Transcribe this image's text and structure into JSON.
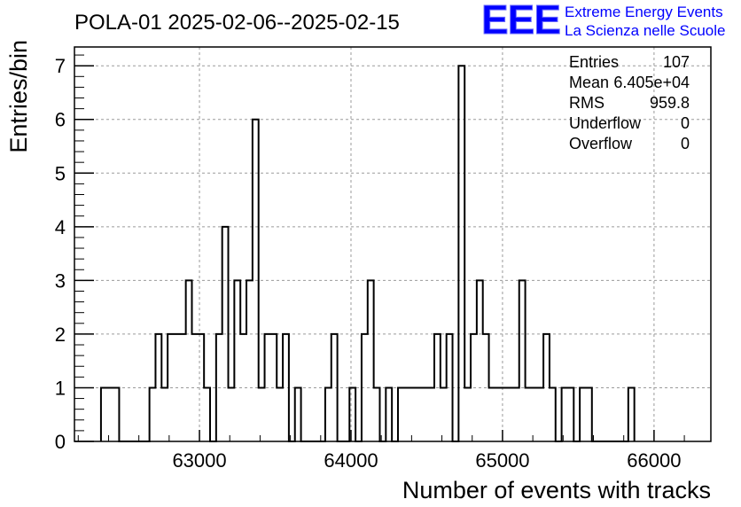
{
  "logo": {
    "mark": "EEE",
    "line1": "Extreme Energy Events",
    "line2": "La Scienza nelle Scuole",
    "color": "#0000ff"
  },
  "stats": {
    "entries_label": "Entries",
    "entries_value": "107",
    "mean_label": "Mean",
    "mean_value": "6.405e+04",
    "rms_label": "RMS",
    "rms_value": "959.8",
    "underflow_label": "Underflow",
    "underflow_value": "0",
    "overflow_label": "Overflow",
    "overflow_value": "0"
  },
  "chart_data": {
    "type": "histogram",
    "title": "POLA-01 2025-02-06--2025-02-15",
    "xlabel": "Number of events with tracks",
    "ylabel": "Entries/bin",
    "xlim": [
      62175,
      66375
    ],
    "ylim": [
      0,
      7.35
    ],
    "bin_width": 40,
    "x_ticks": [
      63000,
      64000,
      65000,
      66000
    ],
    "y_ticks": [
      0,
      1,
      2,
      3,
      4,
      5,
      6,
      7
    ],
    "grid": true,
    "line_color": "#000000",
    "bin_edges_start": 62350,
    "counts": [
      1,
      1,
      1,
      0,
      0,
      0,
      0,
      0,
      1,
      2,
      1,
      2,
      2,
      2,
      3,
      2,
      2,
      1,
      0,
      2,
      4,
      1,
      3,
      2,
      3,
      6,
      1,
      2,
      2,
      1,
      2,
      0,
      1,
      0,
      0,
      0,
      0,
      1,
      2,
      0,
      0,
      1,
      0,
      2,
      3,
      1,
      0,
      1,
      0,
      1,
      1,
      1,
      1,
      1,
      1,
      2,
      1,
      2,
      0,
      7,
      1,
      2,
      3,
      2,
      1,
      1,
      1,
      1,
      1,
      3,
      1,
      1,
      1,
      2,
      1,
      0,
      1,
      1,
      0,
      1,
      1,
      0,
      0,
      0,
      0,
      0,
      0,
      1
    ],
    "stats_box": {
      "entries": 107,
      "mean": 64050,
      "rms": 959.8,
      "underflow": 0,
      "overflow": 0
    }
  }
}
